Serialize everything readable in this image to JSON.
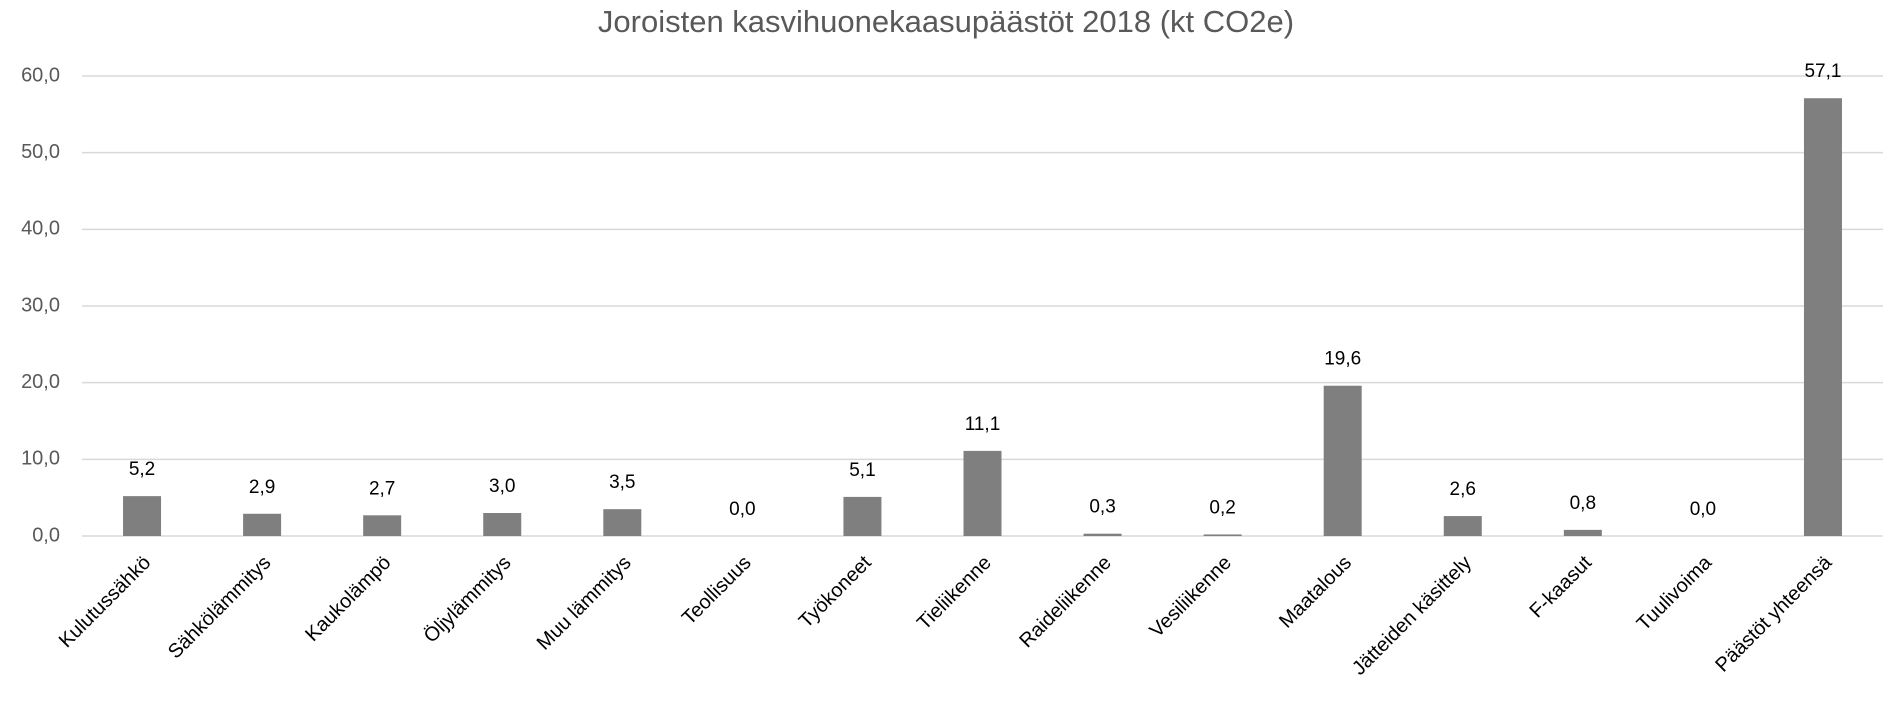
{
  "chart_data": {
    "type": "bar",
    "title": "Joroisten kasvihuonekaasupäästöt 2018 (kt CO2e)",
    "categories": [
      "Kulutussähkö",
      "Sähkölämmitys",
      "Kaukolämpö",
      "Öljylämmitys",
      "Muu lämmitys",
      "Teollisuus",
      "Työkoneet",
      "Tieliikenne",
      "Raideliikenne",
      "Vesiliikenne",
      "Maatalous",
      "Jätteiden käsittely",
      "F-kaasut",
      "Tuulivoima",
      "Päästöt yhteensä"
    ],
    "values": [
      5.2,
      2.9,
      2.7,
      3.0,
      3.5,
      0.0,
      5.1,
      11.1,
      0.3,
      0.2,
      19.6,
      2.6,
      0.8,
      0.0,
      57.1
    ],
    "value_labels": [
      "5,2",
      "2,9",
      "2,7",
      "3,0",
      "3,5",
      "0,0",
      "5,1",
      "11,1",
      "0,3",
      "0,2",
      "19,6",
      "2,6",
      "0,8",
      "0,0",
      "57,1"
    ],
    "color": "#7f7f7f",
    "ylim": [
      0,
      60
    ],
    "yticks": [
      {
        "value": 0,
        "label": "0,0"
      },
      {
        "value": 10,
        "label": "10,0"
      },
      {
        "value": 20,
        "label": "20,0"
      },
      {
        "value": 30,
        "label": "30,0"
      },
      {
        "value": 40,
        "label": "40,0"
      },
      {
        "value": 50,
        "label": "50,0"
      },
      {
        "value": 60,
        "label": "60,0"
      }
    ],
    "grid": true
  }
}
